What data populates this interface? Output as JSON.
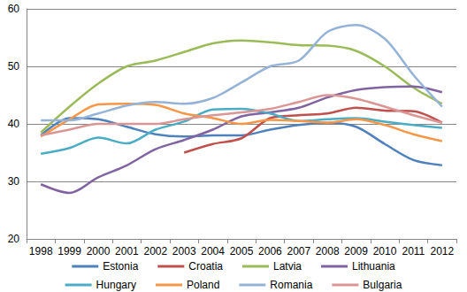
{
  "chart_data": {
    "type": "line",
    "categories": [
      "1998",
      "1999",
      "2000",
      "2001",
      "2002",
      "2003",
      "2004",
      "2005",
      "2006",
      "2007",
      "2008",
      "2009",
      "2010",
      "2011",
      "2012"
    ],
    "ylim": [
      20,
      60
    ],
    "yticks": [
      20,
      30,
      40,
      50,
      60
    ],
    "grid": true,
    "legend": "bottom",
    "marker": "none",
    "series": [
      {
        "name": "Estonia",
        "color": "#4F81BD",
        "values": [
          38,
          41,
          40.8,
          39.5,
          38.2,
          37.8,
          38,
          38,
          39,
          39.8,
          40.2,
          39.5,
          36.5,
          33.7,
          32.8
        ]
      },
      {
        "name": "Croatia",
        "color": "#C0504D",
        "values": [
          null,
          null,
          null,
          null,
          null,
          35,
          36.5,
          37.5,
          41,
          41.5,
          41.8,
          42.8,
          42.3,
          42.2,
          40.2
        ]
      },
      {
        "name": "Latvia",
        "color": "#9BBB59",
        "values": [
          38.5,
          43,
          47,
          50,
          51,
          52.5,
          54,
          54.5,
          54.2,
          53.7,
          53.6,
          52.7,
          50,
          46.3,
          43.5
        ]
      },
      {
        "name": "Lithuania",
        "color": "#8064A2",
        "values": [
          29.5,
          28,
          30.7,
          32.8,
          35.6,
          37.2,
          39,
          41.3,
          42,
          42.8,
          44.6,
          45.9,
          46.4,
          46.5,
          45.5
        ]
      },
      {
        "name": "Hungary",
        "color": "#4BACC6",
        "values": [
          34.8,
          35.8,
          37.6,
          36.6,
          39,
          40.4,
          42.5,
          42.6,
          41.8,
          40.5,
          40.8,
          41,
          40.4,
          39.8,
          39.3
        ]
      },
      {
        "name": "Poland",
        "color": "#F79646",
        "values": [
          37.8,
          40.8,
          43.4,
          43.5,
          43.3,
          41.8,
          41,
          40,
          40.7,
          40.5,
          40.2,
          40.8,
          39.8,
          38.2,
          37
        ]
      },
      {
        "name": "Romania",
        "color": "#95B3D7",
        "values": [
          40.6,
          40.6,
          41.8,
          43.2,
          43.8,
          43.5,
          44.5,
          47.2,
          50,
          51,
          56,
          57.2,
          54.8,
          48.5,
          43
        ]
      },
      {
        "name": "Bulgaria",
        "color": "#D99694",
        "values": [
          38,
          39,
          40,
          40,
          40,
          40.8,
          41.5,
          42,
          42.6,
          43.8,
          45,
          44.4,
          43,
          41.5,
          40.2
        ]
      }
    ]
  }
}
